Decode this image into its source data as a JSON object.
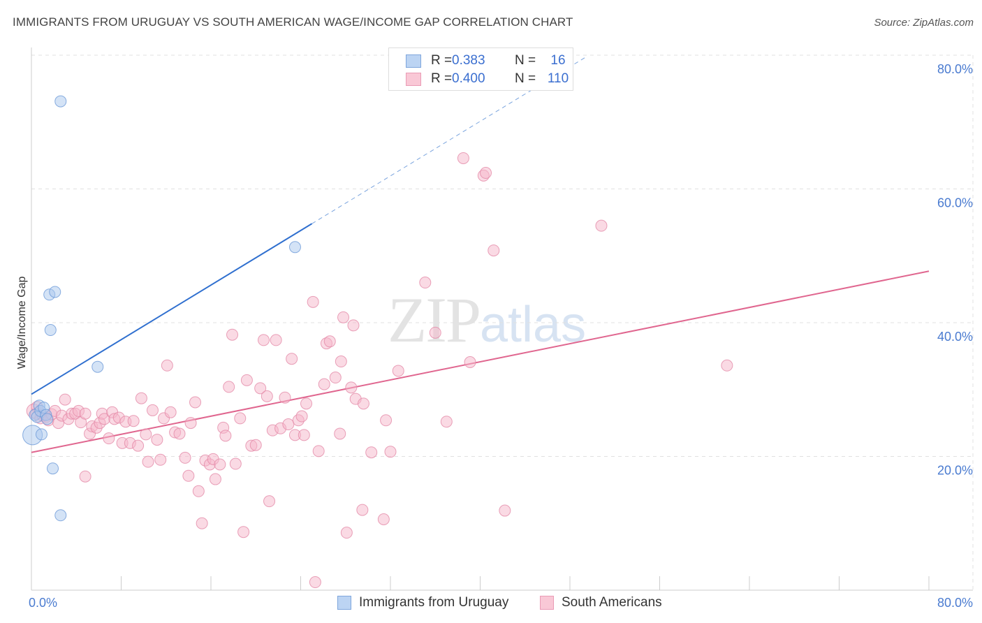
{
  "title": "IMMIGRANTS FROM URUGUAY VS SOUTH AMERICAN WAGE/INCOME GAP CORRELATION CHART",
  "source": "Source: ZipAtlas.com",
  "watermark": {
    "main": "ZIP",
    "sub": "atlas"
  },
  "legend": {
    "rows": [
      {
        "r_label": "R =",
        "r_value": "0.383",
        "n_label": "N =",
        "n_value": "16"
      },
      {
        "r_label": "R =",
        "r_value": "0.400",
        "n_label": "N =",
        "n_value": "110"
      }
    ]
  },
  "bottom_legend": [
    "Immigrants from Uruguay",
    "South Americans"
  ],
  "chart_data": {
    "type": "scatter",
    "title": "IMMIGRANTS FROM URUGUAY VS SOUTH AMERICAN WAGE/INCOME GAP CORRELATION CHART",
    "xlabel": "",
    "ylabel": "Wage/Income Gap",
    "xlim": [
      0,
      80
    ],
    "ylim": [
      0,
      80
    ],
    "x_tick_labels": [
      "0.0%",
      "80.0%"
    ],
    "y_ticks": [
      20,
      40,
      60,
      80
    ],
    "y_tick_labels": [
      "20.0%",
      "40.0%",
      "60.0%",
      "80.0%"
    ],
    "grid": true,
    "colors": {
      "uruguay_fill": "#a9c8ee",
      "uruguay_stroke": "#6d9ad8",
      "uruguay_line": "#2f6fcf",
      "south_fill": "#f6b6c9",
      "south_stroke": "#e48aa8",
      "south_line": "#e0668f",
      "grid": "#e0e0e0",
      "tick": "#4a7bd0"
    },
    "series": [
      {
        "name": "Immigrants from Uruguay",
        "r": 0.383,
        "n": 16,
        "trend": {
          "x0": 0,
          "y0": 29.3,
          "x1": 25,
          "y1": 54.8,
          "dash_to_x": 49.5,
          "dash_to_y": 79.8
        },
        "points": [
          [
            0.1,
            23.2,
            14
          ],
          [
            0.3,
            26.2,
            8
          ],
          [
            0.5,
            25.9,
            8
          ],
          [
            0.7,
            27.6,
            8
          ],
          [
            0.8,
            26.8,
            8
          ],
          [
            0.9,
            23.3,
            8
          ],
          [
            1.1,
            27.3,
            8
          ],
          [
            1.3,
            26.2,
            8
          ],
          [
            1.4,
            25.6,
            8
          ],
          [
            1.6,
            44.2,
            8
          ],
          [
            1.7,
            38.9,
            8
          ],
          [
            1.9,
            18.2,
            8
          ],
          [
            2.1,
            44.6,
            8
          ],
          [
            2.6,
            73.1,
            8
          ],
          [
            2.6,
            11.2,
            8
          ],
          [
            5.9,
            33.4,
            8
          ],
          [
            23.5,
            51.3,
            8
          ]
        ]
      },
      {
        "name": "South Americans",
        "r": 0.4,
        "n": 110,
        "trend": {
          "x0": 0,
          "y0": 20.6,
          "x1": 80,
          "y1": 47.7
        },
        "points": [
          [
            0.2,
            26.8,
            10
          ],
          [
            0.4,
            26.4,
            8
          ],
          [
            0.5,
            27.4,
            8
          ],
          [
            0.8,
            25.7,
            8
          ],
          [
            1.0,
            26.1,
            8
          ],
          [
            1.3,
            25.9,
            8
          ],
          [
            1.5,
            25.4,
            8
          ],
          [
            1.8,
            26.3,
            8
          ],
          [
            2.1,
            26.8,
            8
          ],
          [
            2.4,
            25.0,
            8
          ],
          [
            2.7,
            26.1,
            8
          ],
          [
            3.0,
            28.5,
            8
          ],
          [
            3.3,
            25.6,
            8
          ],
          [
            3.6,
            26.4,
            8
          ],
          [
            3.9,
            26.4,
            8
          ],
          [
            4.2,
            26.8,
            8
          ],
          [
            4.4,
            25.1,
            8
          ],
          [
            4.8,
            26.4,
            8
          ],
          [
            4.8,
            17.0,
            8
          ],
          [
            5.2,
            23.4,
            8
          ],
          [
            5.4,
            24.5,
            8
          ],
          [
            5.8,
            24.3,
            8
          ],
          [
            6.1,
            25.0,
            8
          ],
          [
            6.3,
            26.4,
            8
          ],
          [
            6.5,
            25.6,
            8
          ],
          [
            6.9,
            22.7,
            8
          ],
          [
            7.2,
            26.6,
            8
          ],
          [
            7.4,
            25.6,
            8
          ],
          [
            7.8,
            25.8,
            8
          ],
          [
            8.1,
            22.0,
            8
          ],
          [
            8.4,
            25.2,
            8
          ],
          [
            8.8,
            22.0,
            8
          ],
          [
            9.1,
            25.3,
            8
          ],
          [
            9.5,
            21.6,
            8
          ],
          [
            9.8,
            28.7,
            8
          ],
          [
            10.2,
            23.3,
            8
          ],
          [
            10.4,
            19.2,
            8
          ],
          [
            10.8,
            26.9,
            8
          ],
          [
            11.2,
            22.5,
            8
          ],
          [
            11.5,
            19.5,
            8
          ],
          [
            11.8,
            25.7,
            8
          ],
          [
            12.1,
            33.6,
            8
          ],
          [
            12.4,
            26.6,
            8
          ],
          [
            12.8,
            23.6,
            8
          ],
          [
            13.2,
            23.4,
            8
          ],
          [
            13.7,
            19.8,
            8
          ],
          [
            14.0,
            17.1,
            8
          ],
          [
            14.2,
            25.0,
            8
          ],
          [
            14.6,
            28.1,
            8
          ],
          [
            14.9,
            14.8,
            8
          ],
          [
            15.2,
            10.0,
            8
          ],
          [
            15.5,
            19.4,
            8
          ],
          [
            15.9,
            18.8,
            8
          ],
          [
            16.2,
            19.6,
            8
          ],
          [
            16.4,
            16.6,
            8
          ],
          [
            16.8,
            18.8,
            8
          ],
          [
            17.1,
            24.3,
            8
          ],
          [
            17.3,
            23.1,
            8
          ],
          [
            17.6,
            30.4,
            8
          ],
          [
            17.9,
            38.2,
            8
          ],
          [
            18.2,
            18.9,
            8
          ],
          [
            18.6,
            25.7,
            8
          ],
          [
            18.9,
            8.7,
            8
          ],
          [
            19.2,
            31.4,
            8
          ],
          [
            19.6,
            21.6,
            8
          ],
          [
            20.0,
            21.7,
            8
          ],
          [
            20.4,
            30.2,
            8
          ],
          [
            20.7,
            37.4,
            8
          ],
          [
            21.0,
            29.0,
            8
          ],
          [
            21.2,
            13.3,
            8
          ],
          [
            21.5,
            23.9,
            8
          ],
          [
            21.8,
            37.4,
            8
          ],
          [
            22.2,
            24.2,
            8
          ],
          [
            22.6,
            28.8,
            8
          ],
          [
            22.9,
            24.8,
            8
          ],
          [
            23.2,
            34.6,
            8
          ],
          [
            23.5,
            23.2,
            8
          ],
          [
            23.8,
            25.4,
            8
          ],
          [
            24.1,
            26.0,
            8
          ],
          [
            24.3,
            23.2,
            8
          ],
          [
            24.5,
            27.9,
            8
          ],
          [
            25.1,
            43.1,
            8
          ],
          [
            25.3,
            1.2,
            8
          ],
          [
            25.6,
            20.8,
            8
          ],
          [
            26.1,
            30.8,
            8
          ],
          [
            26.3,
            36.9,
            8
          ],
          [
            26.6,
            37.2,
            8
          ],
          [
            27.1,
            31.8,
            8
          ],
          [
            27.5,
            23.4,
            8
          ],
          [
            27.6,
            34.2,
            8
          ],
          [
            27.8,
            40.8,
            8
          ],
          [
            28.1,
            8.6,
            8
          ],
          [
            28.5,
            30.3,
            8
          ],
          [
            28.7,
            39.6,
            8
          ],
          [
            28.9,
            28.6,
            8
          ],
          [
            29.5,
            12.0,
            8
          ],
          [
            29.6,
            27.9,
            8
          ],
          [
            30.3,
            20.6,
            8
          ],
          [
            31.4,
            10.6,
            8
          ],
          [
            31.6,
            25.4,
            8
          ],
          [
            32.0,
            20.7,
            8
          ],
          [
            32.7,
            32.8,
            8
          ],
          [
            35.1,
            46.0,
            8
          ],
          [
            36.0,
            38.5,
            8
          ],
          [
            37.0,
            25.2,
            8
          ],
          [
            38.5,
            64.6,
            8
          ],
          [
            39.1,
            34.1,
            8
          ],
          [
            40.3,
            62.0,
            8
          ],
          [
            40.5,
            62.4,
            8
          ],
          [
            41.2,
            50.8,
            8
          ],
          [
            42.2,
            11.9,
            8
          ],
          [
            50.8,
            54.5,
            8
          ],
          [
            62.0,
            33.6,
            8
          ]
        ]
      }
    ]
  }
}
